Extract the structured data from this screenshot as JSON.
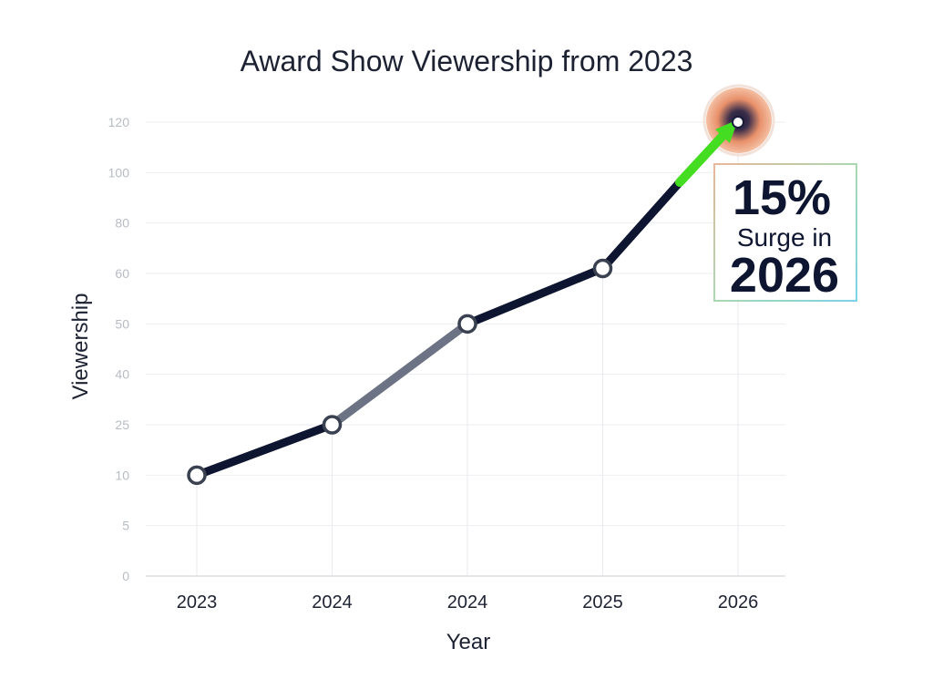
{
  "chart_data": {
    "type": "line",
    "title": "Award Show Viewership from 2023",
    "xlabel": "Year",
    "ylabel": "Viewership",
    "categories": [
      "2023",
      "2024",
      "2024",
      "2025",
      "2026"
    ],
    "values": [
      10,
      25,
      50,
      62,
      120
    ],
    "y_ticks": [
      "0",
      "5",
      "10",
      "25",
      "40",
      "50",
      "60",
      "80",
      "100",
      "120"
    ],
    "grid": true,
    "annotation": {
      "line1": "15%",
      "line2": "Surge in",
      "line3": "2026"
    },
    "colors": {
      "line": "#0d1530",
      "segment_highlight": "#6b7384",
      "arrow": "#44dd22",
      "glow": "#e8825a"
    }
  }
}
